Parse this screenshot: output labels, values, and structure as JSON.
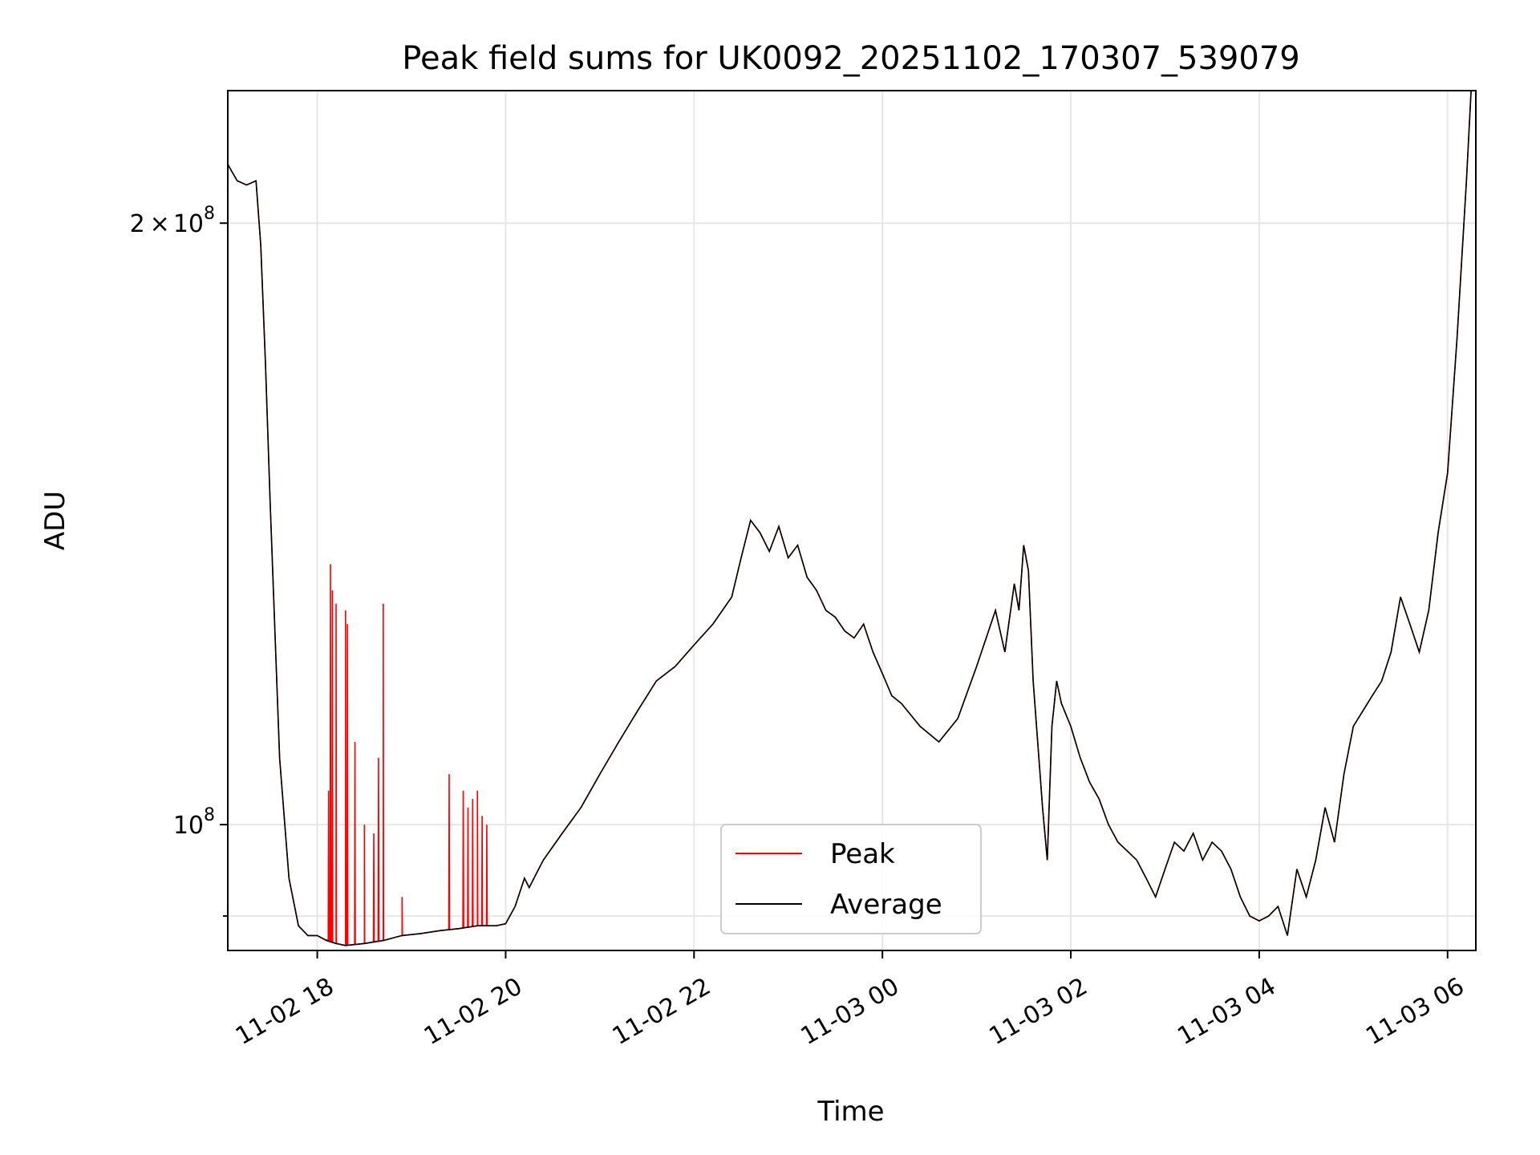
{
  "chart_data": {
    "type": "line",
    "title": "Peak field sums for UK0092_20251102_170307_539079",
    "xlabel": "Time",
    "ylabel": "ADU",
    "x_unit": "hours from 11-02 00:00",
    "xlim": [
      17.05,
      30.3
    ],
    "ylim": [
      86500000,
      233000000
    ],
    "yscale": "log",
    "grid": true,
    "legend_position": "lower center",
    "x_ticks": [
      {
        "value": 18,
        "label": "11-02 18"
      },
      {
        "value": 20,
        "label": "11-02 20"
      },
      {
        "value": 22,
        "label": "11-02 22"
      },
      {
        "value": 24,
        "label": "11-03 00"
      },
      {
        "value": 26,
        "label": "11-03 02"
      },
      {
        "value": 28,
        "label": "11-03 04"
      },
      {
        "value": 30,
        "label": "11-03 06"
      }
    ],
    "y_ticks": [
      {
        "value": 200000000,
        "base": "2",
        "times": "×",
        "power_base": "10",
        "exponent": "8"
      },
      {
        "value": 100000000,
        "base": "",
        "times": "",
        "power_base": "10",
        "exponent": "8"
      }
    ],
    "y_minor_ticks": [
      90000000
    ],
    "series": [
      {
        "name": "Average",
        "color": "#000000",
        "x": [
          17.05,
          17.15,
          17.25,
          17.35,
          17.4,
          17.45,
          17.5,
          17.6,
          17.7,
          17.8,
          17.9,
          18.0,
          18.1,
          18.2,
          18.3,
          18.5,
          18.7,
          18.9,
          19.1,
          19.3,
          19.5,
          19.7,
          19.9,
          20.0,
          20.1,
          20.2,
          20.25,
          20.3,
          20.4,
          20.6,
          20.8,
          21.0,
          21.2,
          21.4,
          21.6,
          21.8,
          22.0,
          22.2,
          22.4,
          22.5,
          22.6,
          22.7,
          22.8,
          22.9,
          23.0,
          23.1,
          23.2,
          23.3,
          23.4,
          23.5,
          23.6,
          23.7,
          23.8,
          23.9,
          24.0,
          24.1,
          24.2,
          24.4,
          24.6,
          24.8,
          25.0,
          25.2,
          25.3,
          25.4,
          25.45,
          25.5,
          25.55,
          25.6,
          25.7,
          25.75,
          25.8,
          25.85,
          25.9,
          26.0,
          26.1,
          26.2,
          26.3,
          26.4,
          26.5,
          26.6,
          26.7,
          26.8,
          26.9,
          27.0,
          27.1,
          27.2,
          27.3,
          27.4,
          27.5,
          27.6,
          27.7,
          27.8,
          27.9,
          28.0,
          28.1,
          28.2,
          28.3,
          28.4,
          28.5,
          28.6,
          28.7,
          28.8,
          28.9,
          29.0,
          29.1,
          29.2,
          29.3,
          29.4,
          29.5,
          29.6,
          29.7,
          29.8,
          29.9,
          30.0,
          30.1,
          30.2,
          30.25
        ],
        "y": [
          214000000,
          210000000,
          209000000,
          210000000,
          195000000,
          170000000,
          145000000,
          108000000,
          94000000,
          89000000,
          88000000,
          88000000,
          87500000,
          87200000,
          87000000,
          87200000,
          87500000,
          88000000,
          88200000,
          88500000,
          88700000,
          89000000,
          89000000,
          89200000,
          91000000,
          94000000,
          93000000,
          94000000,
          96000000,
          99000000,
          102000000,
          106000000,
          110000000,
          114000000,
          118000000,
          120000000,
          123000000,
          126000000,
          130000000,
          136000000,
          142000000,
          140000000,
          137000000,
          141000000,
          136000000,
          138000000,
          133000000,
          131000000,
          128000000,
          127000000,
          125000000,
          124000000,
          126000000,
          122000000,
          119000000,
          116000000,
          115000000,
          112000000,
          110000000,
          113000000,
          120000000,
          128000000,
          122000000,
          132000000,
          128000000,
          138000000,
          134000000,
          118000000,
          102000000,
          96000000,
          112000000,
          118000000,
          115000000,
          112000000,
          108000000,
          105000000,
          103000000,
          100000000,
          98000000,
          97000000,
          96000000,
          94000000,
          92000000,
          95000000,
          98000000,
          97000000,
          99000000,
          96000000,
          98000000,
          97000000,
          95000000,
          92000000,
          90000000,
          89500000,
          90000000,
          91000000,
          88000000,
          95000000,
          92000000,
          96000000,
          102000000,
          98000000,
          106000000,
          112000000,
          114000000,
          116000000,
          118000000,
          122000000,
          130000000,
          126000000,
          122000000,
          128000000,
          140000000,
          150000000,
          175000000,
          210000000,
          233000000
        ]
      },
      {
        "name": "Peak",
        "color": "#ff0000",
        "x": [
          18.1,
          18.12,
          18.14,
          18.16,
          18.2,
          18.3,
          18.32,
          18.4,
          18.5,
          18.6,
          18.65,
          18.7,
          18.9,
          19.4,
          19.55,
          19.6,
          19.65,
          19.7,
          19.75,
          19.8
        ],
        "y": [
          87600000,
          104000000,
          135000000,
          131000000,
          129000000,
          128000000,
          126000000,
          110000000,
          100000000,
          99000000,
          108000000,
          129000000,
          92000000,
          106000000,
          104000000,
          102000000,
          103000000,
          104000000,
          101000000,
          100000000
        ]
      }
    ]
  }
}
